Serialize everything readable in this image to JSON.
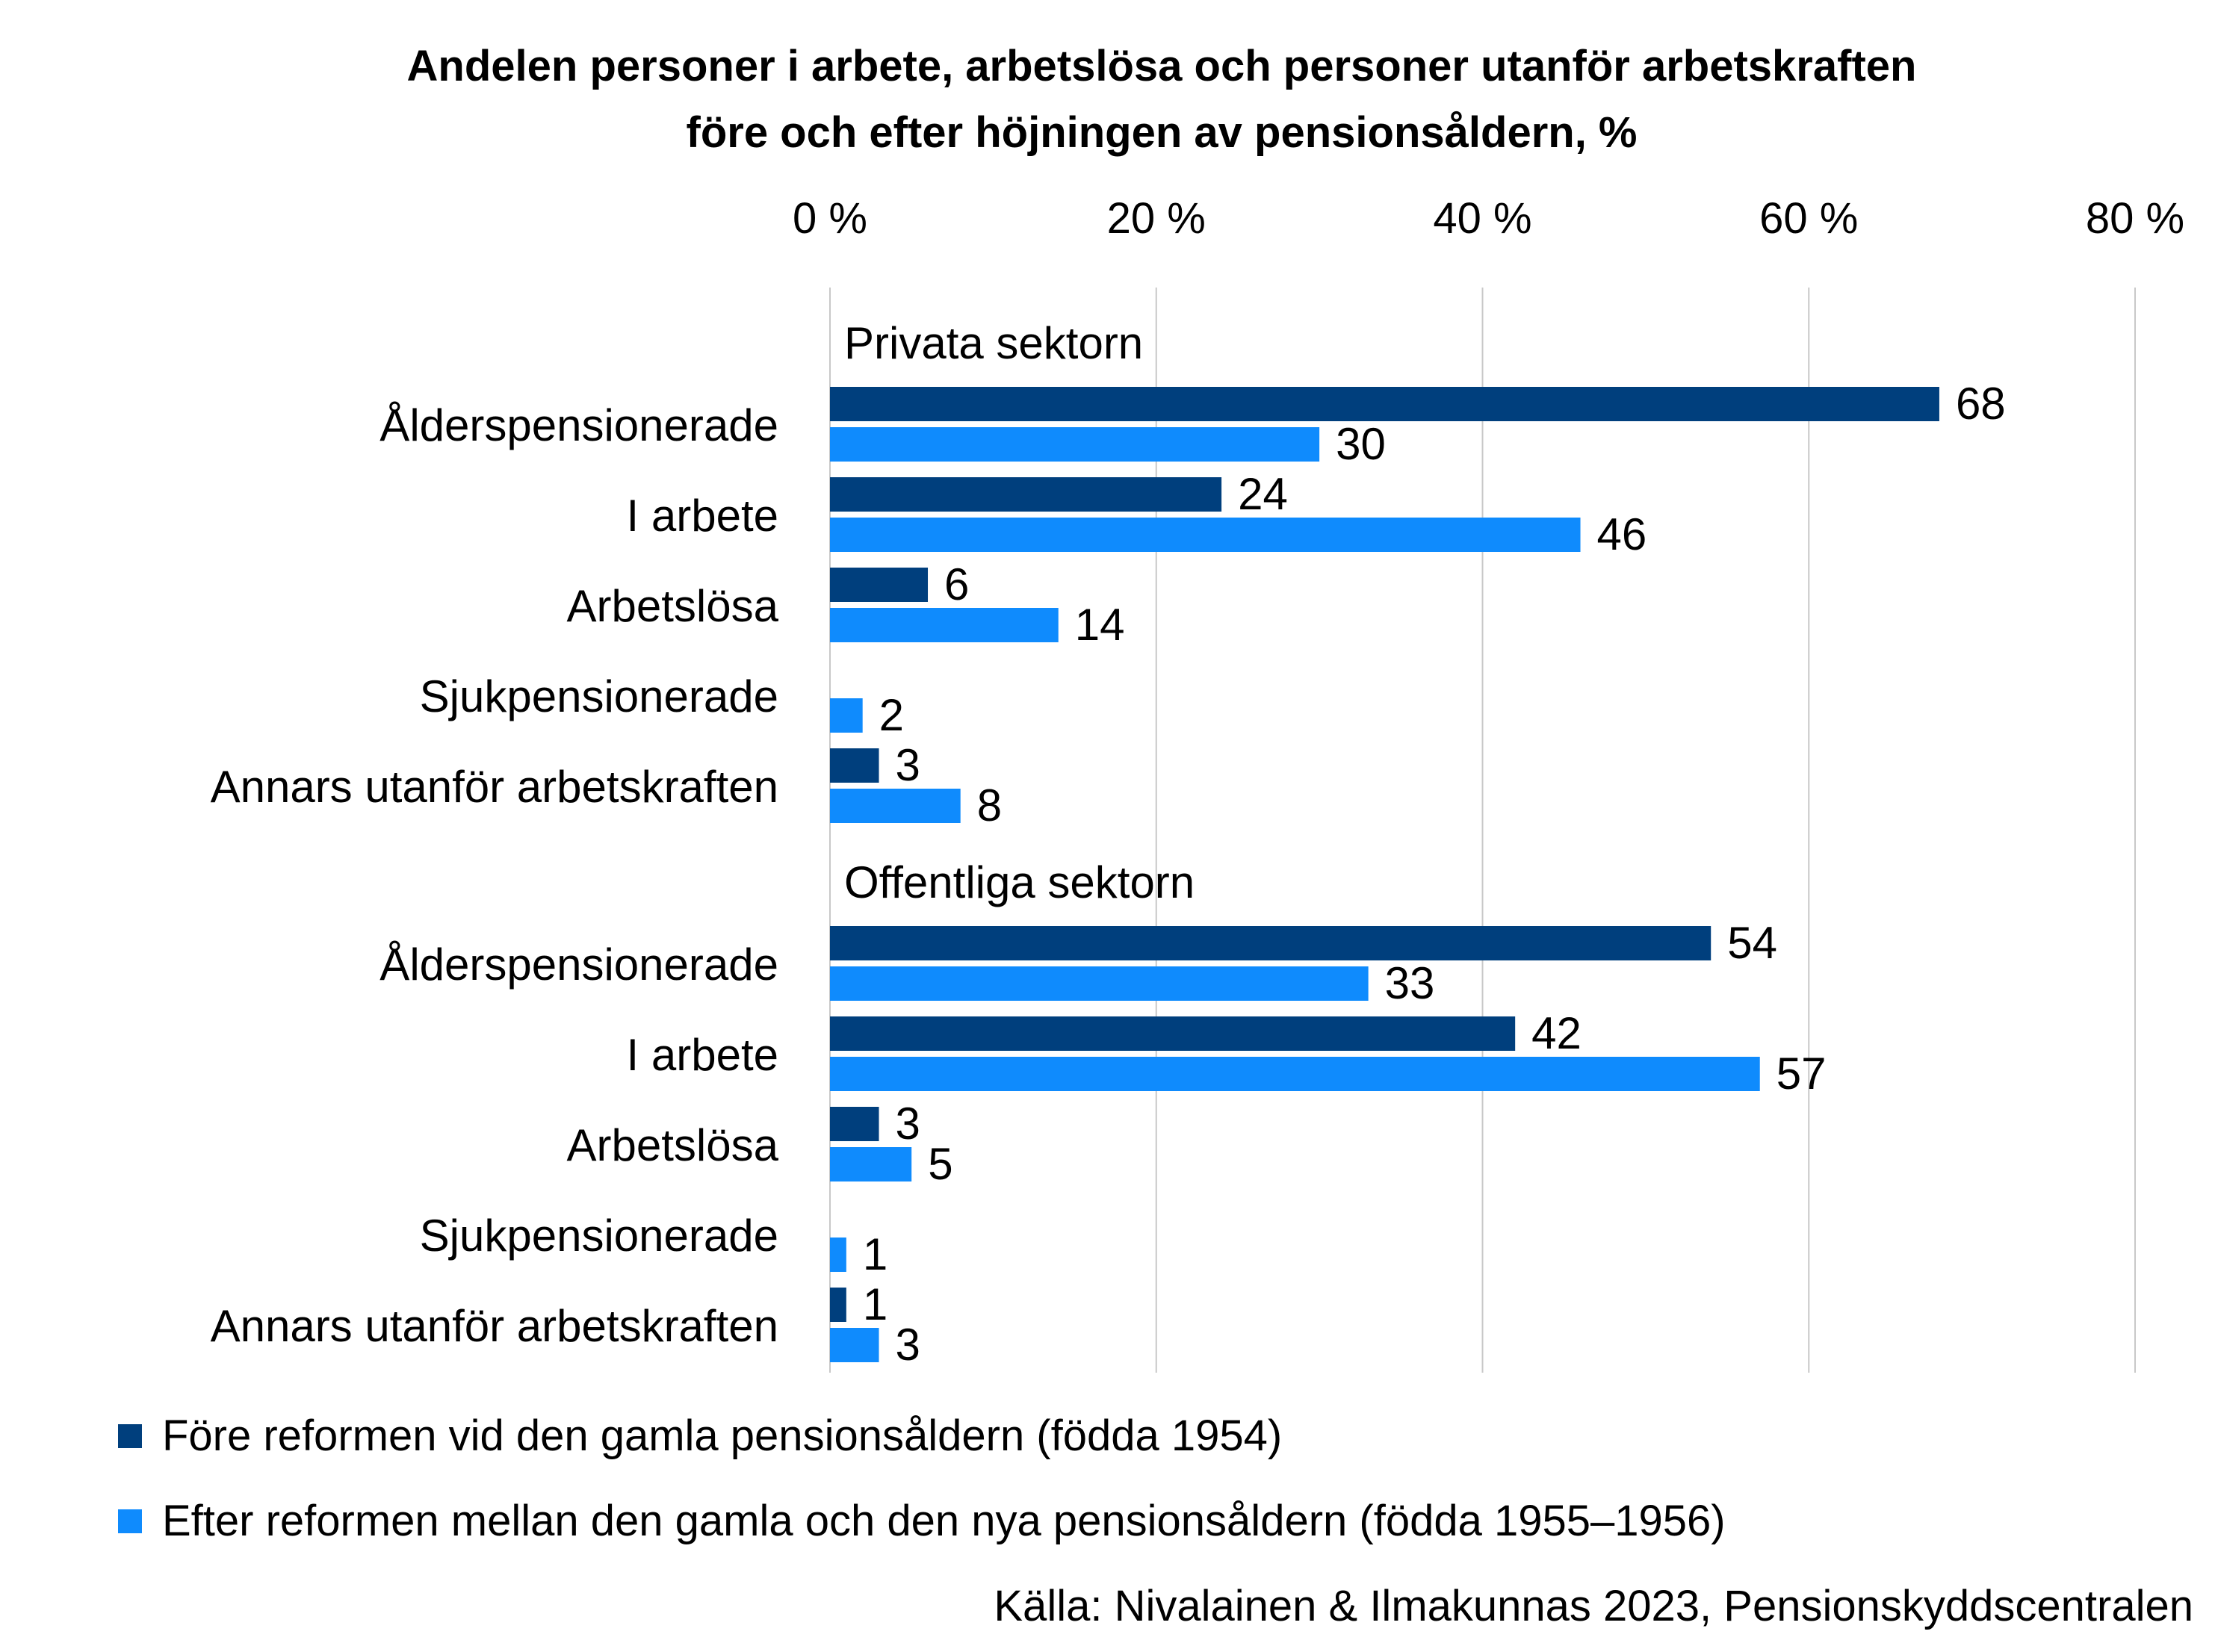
{
  "chart_data": {
    "type": "bar",
    "orientation": "horizontal",
    "title_lines": [
      "Andelen personer i arbete, arbetslösa och personer utanför arbetskraften",
      "före och efter höjningen av pensionsåldern, %"
    ],
    "xlim": [
      0,
      80
    ],
    "x_ticks": [
      "0 %",
      "20 %",
      "40 %",
      "60 %",
      "80 %"
    ],
    "x_tick_values": [
      0,
      20,
      40,
      60,
      80
    ],
    "grid": true,
    "legend_position": "bottom",
    "categories": [
      "Ålderspensionerade",
      "I arbete",
      "Arbetslösa",
      "Sjukpensionerade",
      "Annars utanför arbetskraften"
    ],
    "groups": [
      {
        "name": "Privata sektorn",
        "series": [
          {
            "name": "Före reformen vid den gamla pensionsåldern (födda 1954)",
            "values": [
              68,
              24,
              6,
              null,
              3
            ],
            "color": "#003f7d"
          },
          {
            "name": "Efter reformen mellan den gamla och den nya pensionsåldern (födda 1955–1956)",
            "values": [
              30,
              46,
              14,
              2,
              8
            ],
            "color": "#0f8bfd"
          }
        ]
      },
      {
        "name": "Offentliga sektorn",
        "series": [
          {
            "name": "Före reformen vid den gamla pensionsåldern (födda 1954)",
            "values": [
              54,
              42,
              3,
              null,
              1
            ],
            "color": "#003f7d"
          },
          {
            "name": "Efter reformen mellan den gamla och den nya pensionsåldern (födda 1955–1956)",
            "values": [
              33,
              57,
              5,
              1,
              3
            ],
            "color": "#0f8bfd"
          }
        ]
      }
    ],
    "legend": [
      {
        "label": "Före reformen vid den gamla pensionsåldern (födda 1954)",
        "color": "#003f7d"
      },
      {
        "label": "Efter reformen mellan den gamla och den nya pensionsåldern (födda 1955–1956)",
        "color": "#0f8bfd"
      }
    ],
    "source": "Källa: Nivalainen & Ilmakunnas 2023, Pensionskyddscentralen"
  }
}
